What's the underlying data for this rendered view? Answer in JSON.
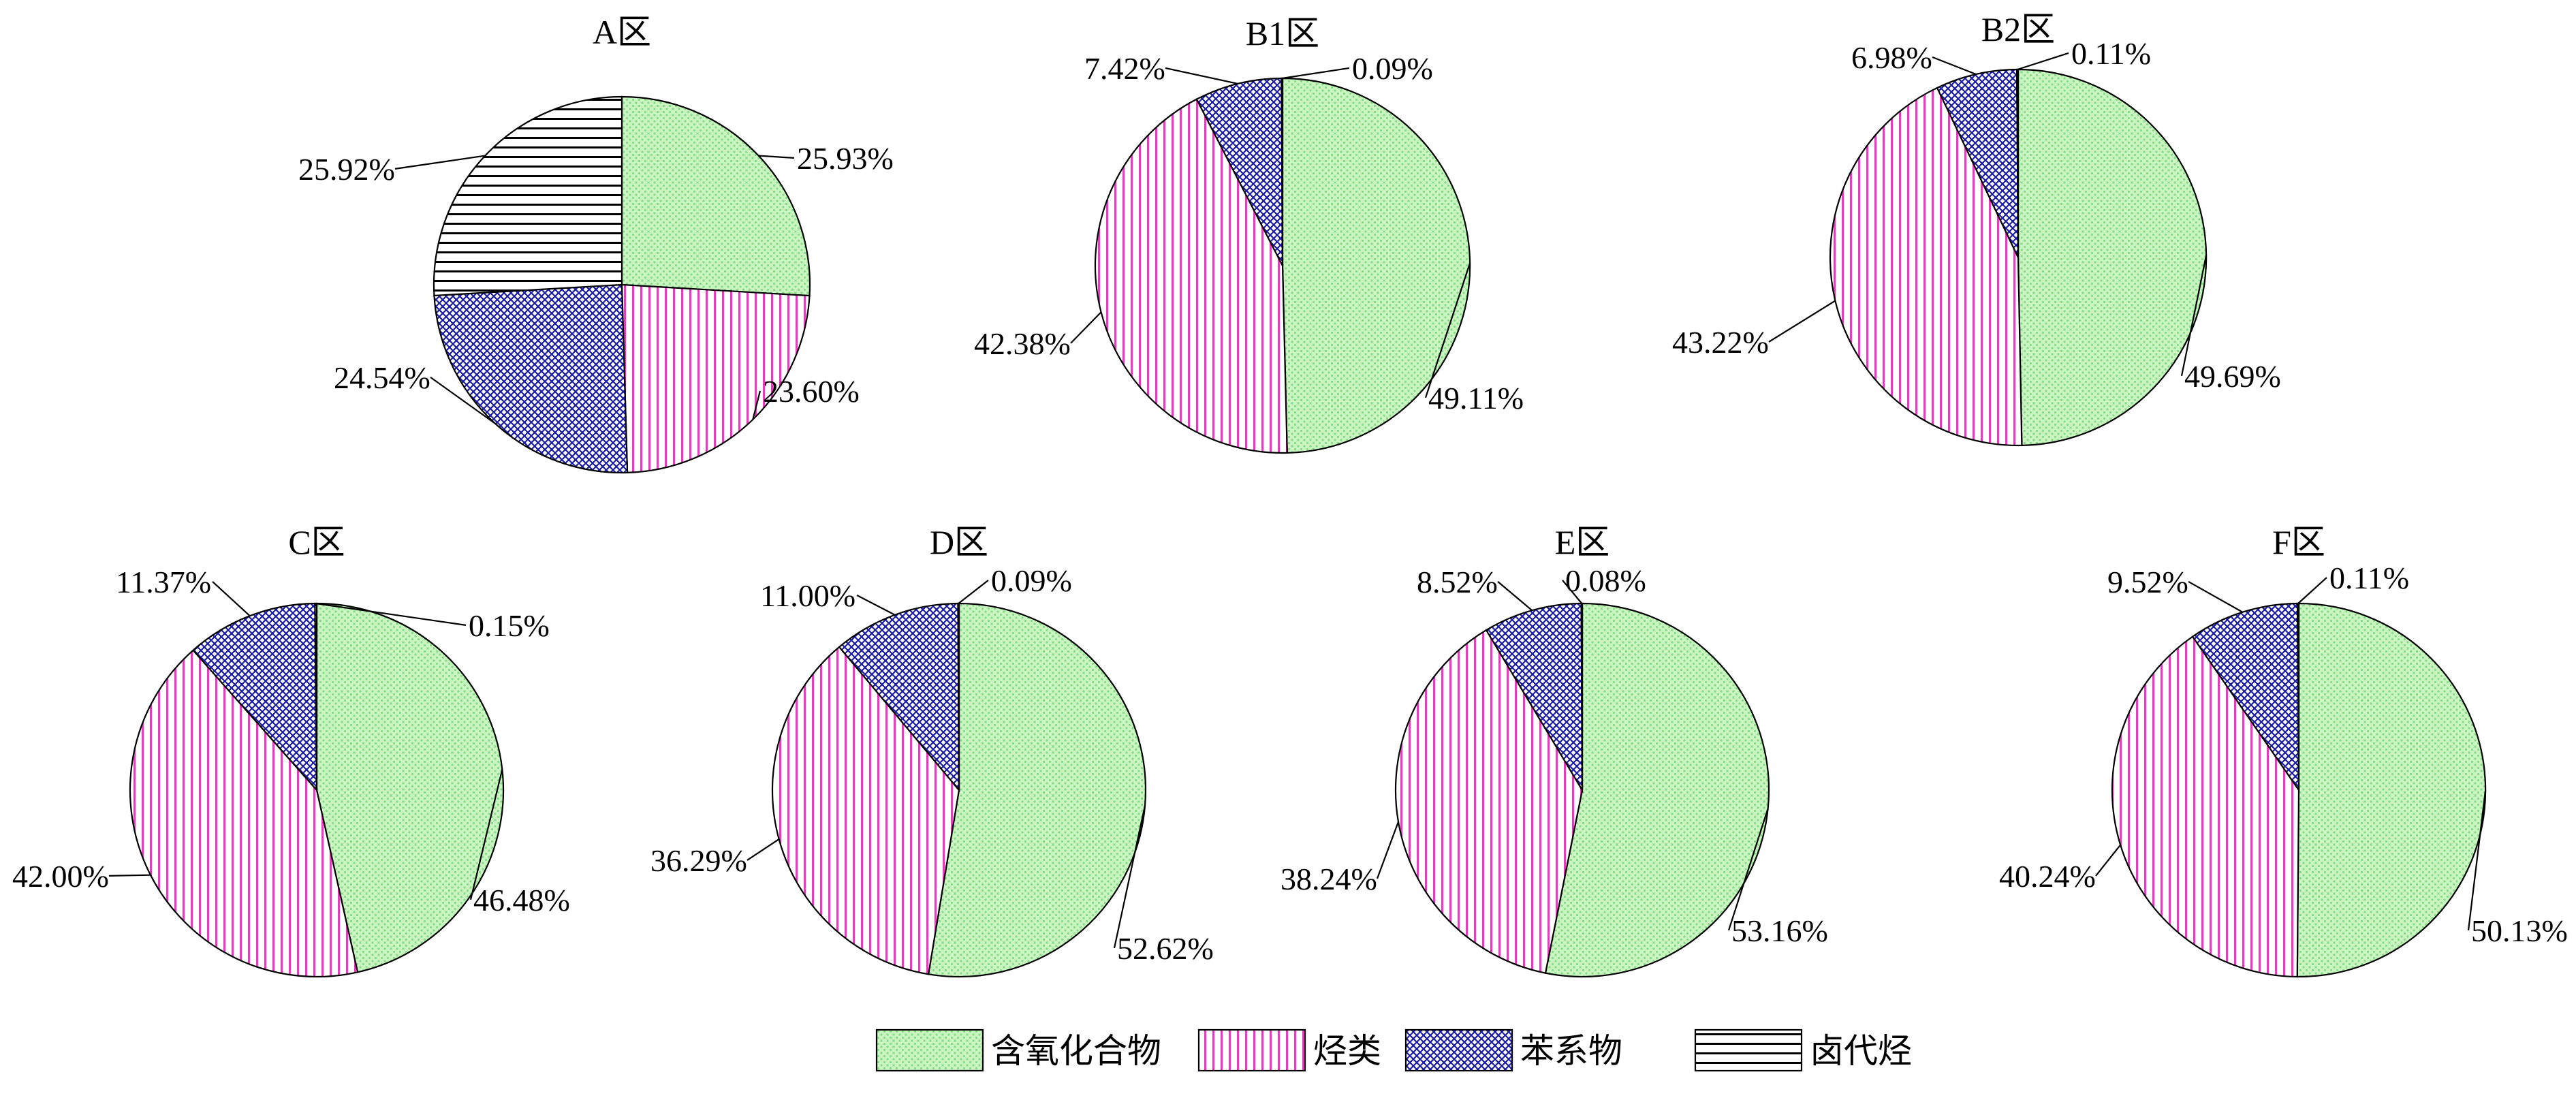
{
  "categories": [
    {
      "name": "含氧化合物",
      "fill": "#c8f5c0",
      "pattern": "dots",
      "pattern_color": "#8ad98a"
    },
    {
      "name": "烃类",
      "fill": "#ffffff",
      "pattern": "vlines",
      "pattern_color": "#e040b8"
    },
    {
      "name": "苯系物",
      "fill": "#ffffff",
      "pattern": "crosshatch",
      "pattern_color": "#1a1aa8"
    },
    {
      "name": "卤代烃",
      "fill": "#ffffff",
      "pattern": "hlines",
      "pattern_color": "#000000"
    }
  ],
  "chart_data": [
    {
      "type": "pie",
      "title": "A区",
      "labels": [
        "含氧化合物",
        "烃类",
        "苯系物",
        "卤代烃"
      ],
      "values": [
        25.93,
        23.6,
        24.54,
        25.92
      ],
      "value_labels": [
        "25.93%",
        "23.60%",
        "24.54%",
        "25.92%"
      ]
    },
    {
      "type": "pie",
      "title": "B1区",
      "labels": [
        "含氧化合物",
        "烃类",
        "苯系物",
        "卤代烃"
      ],
      "values": [
        49.11,
        42.38,
        7.42,
        0.09
      ],
      "value_labels": [
        "49.11%",
        "42.38%",
        "7.42%",
        "0.09%"
      ]
    },
    {
      "type": "pie",
      "title": "B2区",
      "labels": [
        "含氧化合物",
        "烃类",
        "苯系物",
        "卤代烃"
      ],
      "values": [
        49.69,
        43.22,
        6.98,
        0.11
      ],
      "value_labels": [
        "49.69%",
        "43.22%",
        "6.98%",
        "0.11%"
      ]
    },
    {
      "type": "pie",
      "title": "C区",
      "labels": [
        "含氧化合物",
        "烃类",
        "苯系物",
        "卤代烃"
      ],
      "values": [
        46.48,
        42.0,
        11.37,
        0.15
      ],
      "value_labels": [
        "46.48%",
        "42.00%",
        "11.37%",
        "0.15%"
      ]
    },
    {
      "type": "pie",
      "title": "D区",
      "labels": [
        "含氧化合物",
        "烃类",
        "苯系物",
        "卤代烃"
      ],
      "values": [
        52.62,
        36.29,
        11.0,
        0.09
      ],
      "value_labels": [
        "52.62%",
        "36.29%",
        "11.00%",
        "0.09%"
      ]
    },
    {
      "type": "pie",
      "title": "E区",
      "labels": [
        "含氧化合物",
        "烃类",
        "苯系物",
        "卤代烃"
      ],
      "values": [
        53.16,
        38.24,
        8.52,
        0.08
      ],
      "value_labels": [
        "53.16%",
        "38.24%",
        "8.52%",
        "0.08%"
      ]
    },
    {
      "type": "pie",
      "title": "F区",
      "labels": [
        "含氧化合物",
        "烃类",
        "苯系物",
        "卤代烃"
      ],
      "values": [
        50.13,
        40.24,
        9.52,
        0.11
      ],
      "value_labels": [
        "50.13%",
        "40.24%",
        "9.52%",
        "0.11%"
      ]
    }
  ],
  "legend": {
    "position": "bottom-center",
    "entries": [
      "含氧化合物",
      "烃类",
      "苯系物",
      "卤代烃"
    ]
  }
}
